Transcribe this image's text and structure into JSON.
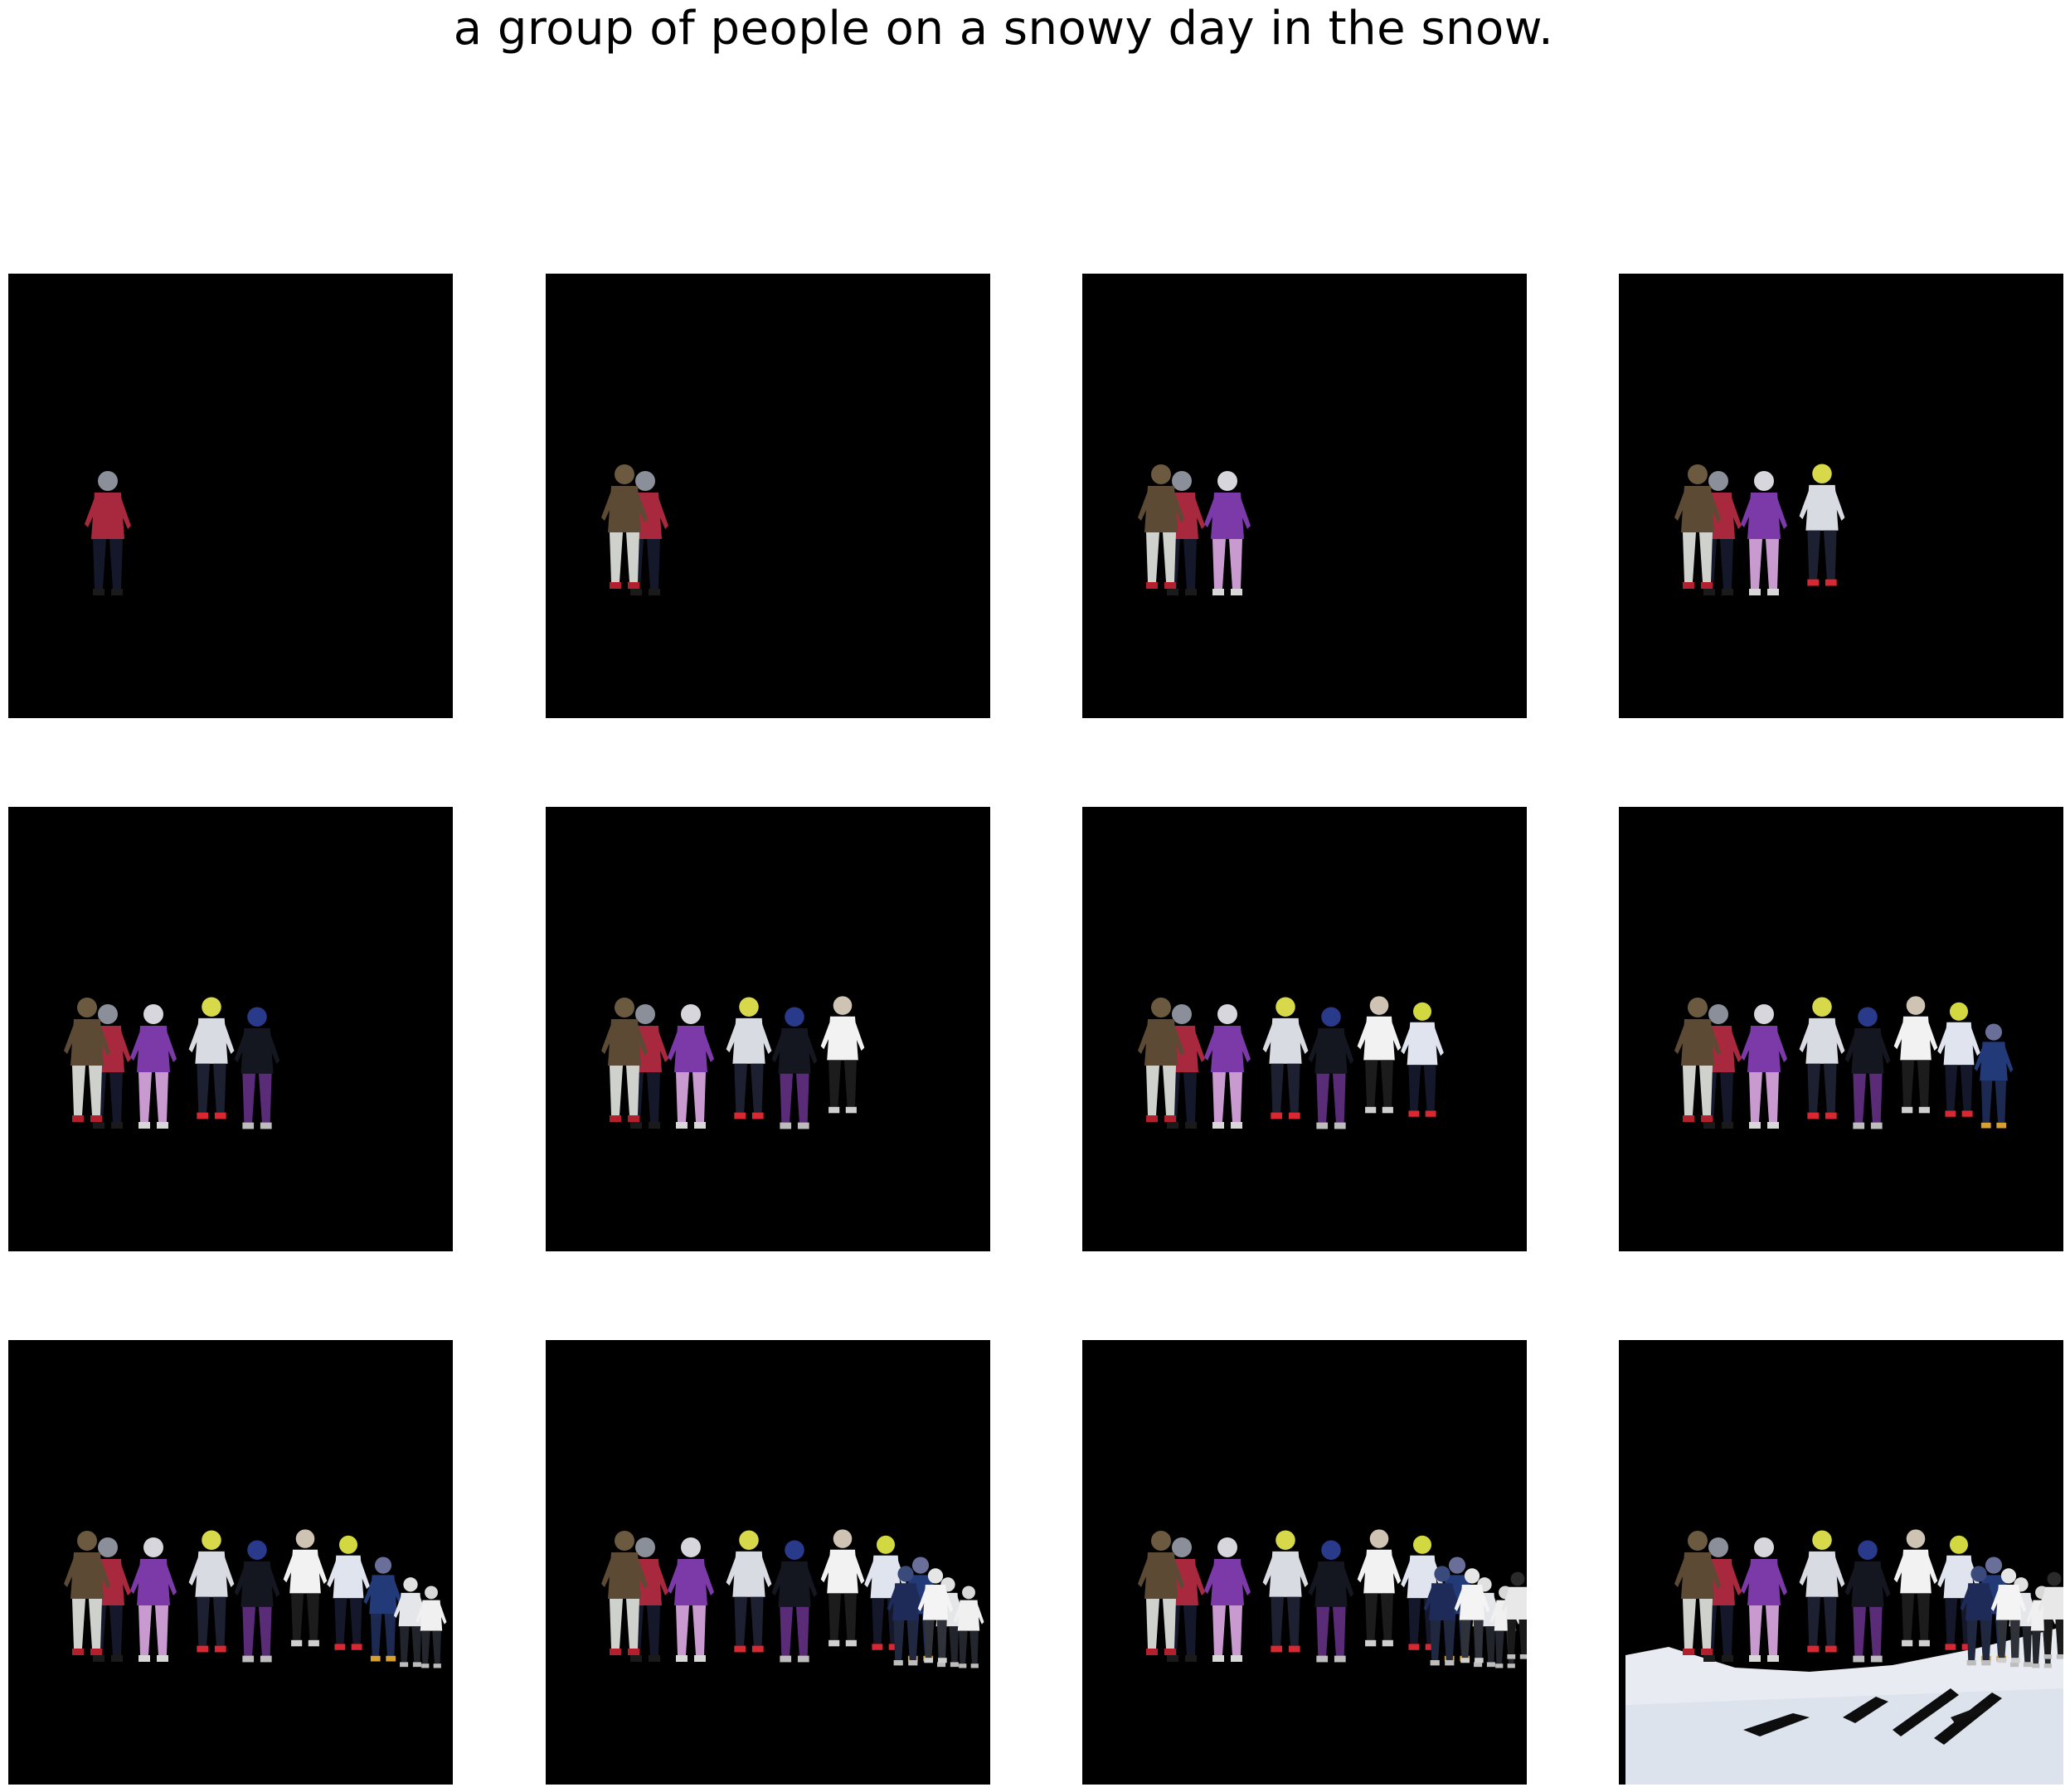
{
  "caption": "a group of people on a snowy day in the snow.",
  "colors": {
    "background": "#ffffff",
    "panel": "#000000",
    "snow": "#e8ecf2"
  },
  "figure": {
    "rows": 3,
    "cols": 4,
    "panels": [
      {
        "people_visible": 1,
        "snow_background": false
      },
      {
        "people_visible": 2,
        "snow_background": false
      },
      {
        "people_visible": 3,
        "snow_background": false
      },
      {
        "people_visible": 4,
        "snow_background": false
      },
      {
        "people_visible": 5,
        "snow_background": false
      },
      {
        "people_visible": 6,
        "snow_background": false
      },
      {
        "people_visible": 7,
        "snow_background": false
      },
      {
        "people_visible": 8,
        "snow_background": false
      },
      {
        "people_visible": 10,
        "snow_background": false
      },
      {
        "people_visible": 12,
        "snow_background": false
      },
      {
        "people_visible": 13,
        "snow_background": false
      },
      {
        "people_visible": 13,
        "snow_background": true
      }
    ]
  }
}
